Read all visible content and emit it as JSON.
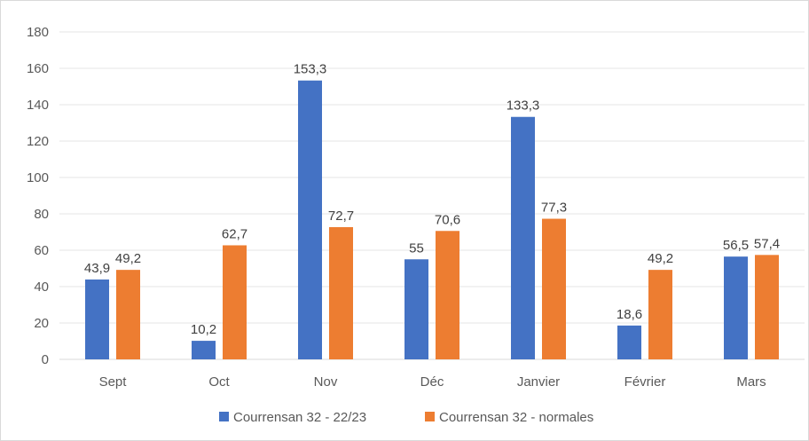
{
  "chart_data": {
    "type": "bar",
    "categories": [
      "Sept",
      "Oct",
      "Nov",
      "Déc",
      "Janvier",
      "Février",
      "Mars"
    ],
    "series": [
      {
        "name": "Courrensan 32 - 22/23",
        "values": [
          43.9,
          10.2,
          153.3,
          55,
          133.3,
          18.6,
          56.5
        ],
        "labels": [
          "43,9",
          "10,2",
          "153,3",
          "55",
          "133,3",
          "18,6",
          "56,5"
        ],
        "color": "#4472c4"
      },
      {
        "name": "Courrensan 32 - normales",
        "values": [
          49.2,
          62.7,
          72.7,
          70.6,
          77.3,
          49.2,
          57.4
        ],
        "labels": [
          "49,2",
          "62,7",
          "72,7",
          "70,6",
          "77,3",
          "49,2",
          "57,4"
        ],
        "color": "#ed7d31"
      }
    ],
    "title": "",
    "xlabel": "",
    "ylabel": "",
    "ylim": [
      0,
      180
    ],
    "yticks": [
      0,
      20,
      40,
      60,
      80,
      100,
      120,
      140,
      160,
      180
    ],
    "grid": true,
    "legend": "bottom"
  }
}
